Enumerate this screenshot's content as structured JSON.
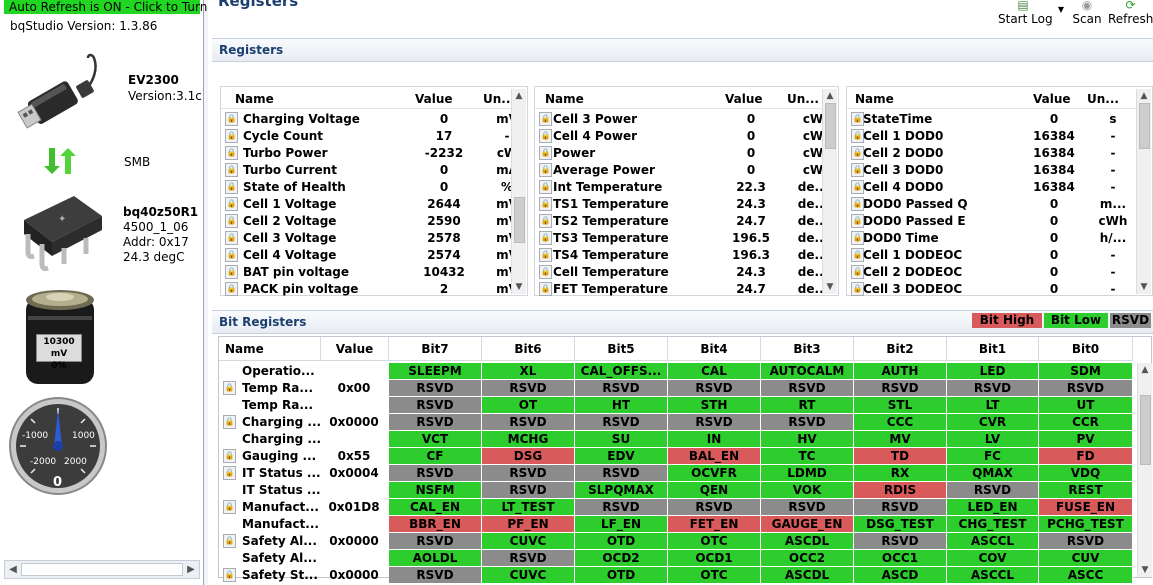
{
  "left": {
    "auto_refresh": "Auto Refresh is ON - Click to Turn",
    "version": "bqStudio Version:  1.3.86",
    "adapter_name": "EV2300",
    "adapter_version": "Version:3.1c",
    "bus": "SMB",
    "device_name": "bq40z50R1",
    "device_fw": "4500_1_06",
    "device_addr": "Addr: 0x17",
    "device_temp": "24.3 degC",
    "battery_mv": "10300 mV",
    "battery_pct": "0%",
    "gauge_labels": [
      "-1000",
      "1000",
      "-2000",
      "2000"
    ],
    "gauge_value": "0",
    "icons": {
      "usb": "usb-plug-icon",
      "arrows": "green-up-down-arrows-icon",
      "chip": "ti-chip-icon",
      "battery": "battery-icon",
      "gauge": "current-gauge-icon"
    }
  },
  "header": {
    "title": "Registers"
  },
  "toolbar": {
    "start_log": "Start Log",
    "scan": "Scan",
    "refresh": "Refresh"
  },
  "registers": {
    "section_title": "Registers",
    "columns": {
      "name": "Name",
      "value": "Value",
      "unit": "Un..."
    },
    "panels": [
      {
        "rows": [
          [
            "Charging Voltage",
            "0",
            "mV"
          ],
          [
            "Cycle Count",
            "17",
            "-"
          ],
          [
            "Turbo Power",
            "-2232",
            "cW"
          ],
          [
            "Turbo Current",
            "0",
            "mA"
          ],
          [
            "State of Health",
            "0",
            "%"
          ],
          [
            "Cell 1 Voltage",
            "2644",
            "mV"
          ],
          [
            "Cell 2 Voltage",
            "2590",
            "mV"
          ],
          [
            "Cell 3 Voltage",
            "2578",
            "mV"
          ],
          [
            "Cell 4 Voltage",
            "2574",
            "mV"
          ],
          [
            "BAT pin voltage",
            "10432",
            "mV"
          ],
          [
            "PACK pin voltage",
            "2",
            "mV"
          ]
        ]
      },
      {
        "rows": [
          [
            "Cell 3 Power",
            "0",
            "cW"
          ],
          [
            "Cell 4 Power",
            "0",
            "cW"
          ],
          [
            "Power",
            "0",
            "cW"
          ],
          [
            "Average Power",
            "0",
            "cW"
          ],
          [
            "Int Temperature",
            "22.3",
            "de..."
          ],
          [
            "TS1 Temperature",
            "24.3",
            "de..."
          ],
          [
            "TS2 Temperature",
            "24.7",
            "de..."
          ],
          [
            "TS3 Temperature",
            "196.5",
            "de..."
          ],
          [
            "TS4 Temperature",
            "196.3",
            "de..."
          ],
          [
            "Cell Temperature",
            "24.3",
            "de..."
          ],
          [
            "FET Temperature",
            "24.7",
            "de..."
          ]
        ]
      },
      {
        "rows": [
          [
            "StateTime",
            "0",
            "s"
          ],
          [
            "Cell 1 DOD0",
            "16384",
            "-"
          ],
          [
            "Cell 2 DOD0",
            "16384",
            "-"
          ],
          [
            "Cell 3 DOD0",
            "16384",
            "-"
          ],
          [
            "Cell 4 DOD0",
            "16384",
            "-"
          ],
          [
            "DOD0 Passed Q",
            "0",
            "m..."
          ],
          [
            "DOD0 Passed E",
            "0",
            "cWh"
          ],
          [
            "DOD0 Time",
            "0",
            "h/..."
          ],
          [
            "Cell 1 DODEOC",
            "0",
            "-"
          ],
          [
            "Cell 2 DODEOC",
            "0",
            "-"
          ],
          [
            "Cell 3 DODEOC",
            "0",
            "-"
          ]
        ]
      }
    ]
  },
  "bits": {
    "section_title": "Bit Registers",
    "legend": {
      "high": "Bit High",
      "low": "Bit Low",
      "rsvd": "RSVD"
    },
    "columns": [
      "Name",
      "Value",
      "Bit7",
      "Bit6",
      "Bit5",
      "Bit4",
      "Bit3",
      "Bit2",
      "Bit1",
      "Bit0"
    ],
    "rows": [
      {
        "name": "Operatio...",
        "value": "",
        "lock": false,
        "bits": [
          [
            "SLEEPM",
            "g"
          ],
          [
            "XL",
            "g"
          ],
          [
            "CAL_OFFS...",
            "g"
          ],
          [
            "CAL",
            "g"
          ],
          [
            "AUTOCALM",
            "g"
          ],
          [
            "AUTH",
            "g"
          ],
          [
            "LED",
            "g"
          ],
          [
            "SDM",
            "g"
          ]
        ]
      },
      {
        "name": "Temp Ra...",
        "value": "0x00",
        "lock": true,
        "bits": [
          [
            "RSVD",
            "y"
          ],
          [
            "RSVD",
            "y"
          ],
          [
            "RSVD",
            "y"
          ],
          [
            "RSVD",
            "y"
          ],
          [
            "RSVD",
            "y"
          ],
          [
            "RSVD",
            "y"
          ],
          [
            "RSVD",
            "y"
          ],
          [
            "RSVD",
            "y"
          ]
        ]
      },
      {
        "name": "Temp Ra...",
        "value": "",
        "lock": false,
        "bits": [
          [
            "RSVD",
            "y"
          ],
          [
            "OT",
            "g"
          ],
          [
            "HT",
            "g"
          ],
          [
            "STH",
            "g"
          ],
          [
            "RT",
            "g"
          ],
          [
            "STL",
            "g"
          ],
          [
            "LT",
            "g"
          ],
          [
            "UT",
            "g"
          ]
        ]
      },
      {
        "name": "Charging ...",
        "value": "0x0000",
        "lock": true,
        "bits": [
          [
            "RSVD",
            "y"
          ],
          [
            "RSVD",
            "y"
          ],
          [
            "RSVD",
            "y"
          ],
          [
            "RSVD",
            "y"
          ],
          [
            "RSVD",
            "y"
          ],
          [
            "CCC",
            "g"
          ],
          [
            "CVR",
            "g"
          ],
          [
            "CCR",
            "g"
          ]
        ]
      },
      {
        "name": "Charging ...",
        "value": "",
        "lock": false,
        "bits": [
          [
            "VCT",
            "g"
          ],
          [
            "MCHG",
            "g"
          ],
          [
            "SU",
            "g"
          ],
          [
            "IN",
            "g"
          ],
          [
            "HV",
            "g"
          ],
          [
            "MV",
            "g"
          ],
          [
            "LV",
            "g"
          ],
          [
            "PV",
            "g"
          ]
        ]
      },
      {
        "name": "Gauging ...",
        "value": "0x55",
        "lock": true,
        "bits": [
          [
            "CF",
            "g"
          ],
          [
            "DSG",
            "r"
          ],
          [
            "EDV",
            "g"
          ],
          [
            "BAL_EN",
            "r"
          ],
          [
            "TC",
            "g"
          ],
          [
            "TD",
            "r"
          ],
          [
            "FC",
            "g"
          ],
          [
            "FD",
            "r"
          ]
        ]
      },
      {
        "name": "IT Status ...",
        "value": "0x0004",
        "lock": true,
        "bits": [
          [
            "RSVD",
            "y"
          ],
          [
            "RSVD",
            "y"
          ],
          [
            "RSVD",
            "y"
          ],
          [
            "OCVFR",
            "g"
          ],
          [
            "LDMD",
            "g"
          ],
          [
            "RX",
            "g"
          ],
          [
            "QMAX",
            "g"
          ],
          [
            "VDQ",
            "g"
          ]
        ]
      },
      {
        "name": "IT Status ...",
        "value": "",
        "lock": false,
        "bits": [
          [
            "NSFM",
            "g"
          ],
          [
            "RSVD",
            "y"
          ],
          [
            "SLPQMAX",
            "g"
          ],
          [
            "QEN",
            "g"
          ],
          [
            "VOK",
            "g"
          ],
          [
            "RDIS",
            "r"
          ],
          [
            "RSVD",
            "y"
          ],
          [
            "REST",
            "g"
          ]
        ]
      },
      {
        "name": "Manufact...",
        "value": "0x01D8",
        "lock": true,
        "bits": [
          [
            "CAL_EN",
            "g"
          ],
          [
            "LT_TEST",
            "g"
          ],
          [
            "RSVD",
            "y"
          ],
          [
            "RSVD",
            "y"
          ],
          [
            "RSVD",
            "y"
          ],
          [
            "RSVD",
            "y"
          ],
          [
            "LED_EN",
            "g"
          ],
          [
            "FUSE_EN",
            "r"
          ]
        ]
      },
      {
        "name": "Manufact...",
        "value": "",
        "lock": false,
        "bits": [
          [
            "BBR_EN",
            "r"
          ],
          [
            "PF_EN",
            "r"
          ],
          [
            "LF_EN",
            "g"
          ],
          [
            "FET_EN",
            "r"
          ],
          [
            "GAUGE_EN",
            "r"
          ],
          [
            "DSG_TEST",
            "g"
          ],
          [
            "CHG_TEST",
            "g"
          ],
          [
            "PCHG_TEST",
            "g"
          ]
        ]
      },
      {
        "name": "Safety Al...",
        "value": "0x0000",
        "lock": true,
        "bits": [
          [
            "RSVD",
            "y"
          ],
          [
            "CUVC",
            "g"
          ],
          [
            "OTD",
            "g"
          ],
          [
            "OTC",
            "g"
          ],
          [
            "ASCDL",
            "g"
          ],
          [
            "RSVD",
            "y"
          ],
          [
            "ASCCL",
            "g"
          ],
          [
            "RSVD",
            "y"
          ]
        ]
      },
      {
        "name": "Safety Al...",
        "value": "",
        "lock": false,
        "bits": [
          [
            "AOLDL",
            "g"
          ],
          [
            "RSVD",
            "y"
          ],
          [
            "OCD2",
            "g"
          ],
          [
            "OCD1",
            "g"
          ],
          [
            "OCC2",
            "g"
          ],
          [
            "OCC1",
            "g"
          ],
          [
            "COV",
            "g"
          ],
          [
            "CUV",
            "g"
          ]
        ]
      },
      {
        "name": "Safety St...",
        "value": "0x0000",
        "lock": true,
        "bits": [
          [
            "RSVD",
            "y"
          ],
          [
            "CUVC",
            "g"
          ],
          [
            "OTD",
            "g"
          ],
          [
            "OTC",
            "g"
          ],
          [
            "ASCDL",
            "g"
          ],
          [
            "ASCD",
            "g"
          ],
          [
            "ASCCL",
            "g"
          ],
          [
            "ASCC",
            "g"
          ]
        ]
      }
    ]
  },
  "colors": {
    "bit_high": "#d95a5a",
    "bit_low": "#2ccd2c",
    "rsvd": "#8b8b8b",
    "auto_refresh_bg": "#21d621",
    "header_text": "#1c3f6e"
  }
}
